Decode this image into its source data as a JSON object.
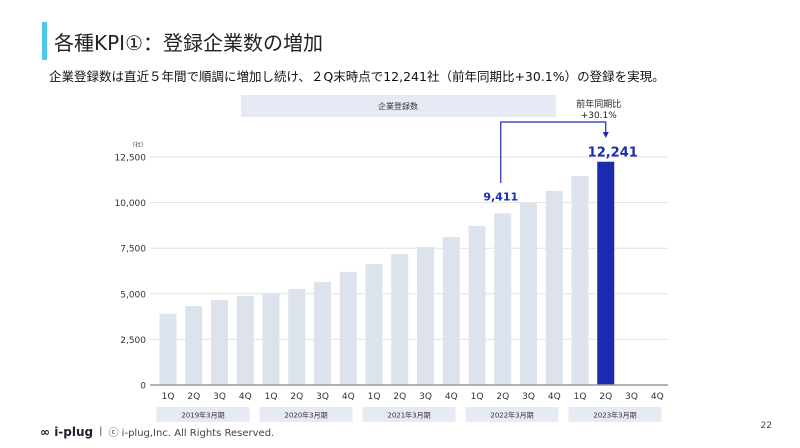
{
  "header": {
    "title": "各種KPI①：登録企業数の増加",
    "subtitle": "企業登録数は直近５年間で順調に増加し続け、２Q末時点で12,241社（前年同期比+30.1%）の登録を実現。"
  },
  "chart_data": {
    "type": "bar",
    "title": "企業登録数",
    "ylabel": "（社）",
    "ylim": [
      0,
      12500
    ],
    "yticks": [
      0,
      2500,
      5000,
      7500,
      10000,
      12500
    ],
    "ytick_labels": [
      "0",
      "2,500",
      "5,000",
      "7,500",
      "10,000",
      "12,500"
    ],
    "grid": true,
    "categories": [
      "1Q",
      "2Q",
      "3Q",
      "4Q",
      "1Q",
      "2Q",
      "3Q",
      "4Q",
      "1Q",
      "2Q",
      "3Q",
      "4Q",
      "1Q",
      "2Q",
      "3Q",
      "4Q",
      "1Q",
      "2Q",
      "3Q",
      "4Q"
    ],
    "groups": [
      "2019年3月期",
      "2020年3月期",
      "2021年3月期",
      "2022年3月期",
      "2023年3月期"
    ],
    "values": [
      3900,
      4330,
      4660,
      4880,
      5040,
      5260,
      5650,
      6200,
      6630,
      7180,
      7570,
      8110,
      8720,
      9411,
      9980,
      10640,
      11460,
      12241,
      null,
      null
    ],
    "highlight_index": 17,
    "data_labels": [
      {
        "index": 13,
        "text": "9,411"
      },
      {
        "index": 17,
        "text": "12,241"
      }
    ],
    "annotation": {
      "line1": "前年同期比",
      "line2": "+30.1%"
    },
    "colors": {
      "bar": "#dce3ec",
      "highlight": "#1a2bb0",
      "label": "#1a2bb0",
      "band": "#e6eaf4"
    }
  },
  "footer": {
    "logo": "i-plug",
    "copyright": "ⓒ i-plug,Inc. All Rights Reserved.",
    "page": "22"
  }
}
